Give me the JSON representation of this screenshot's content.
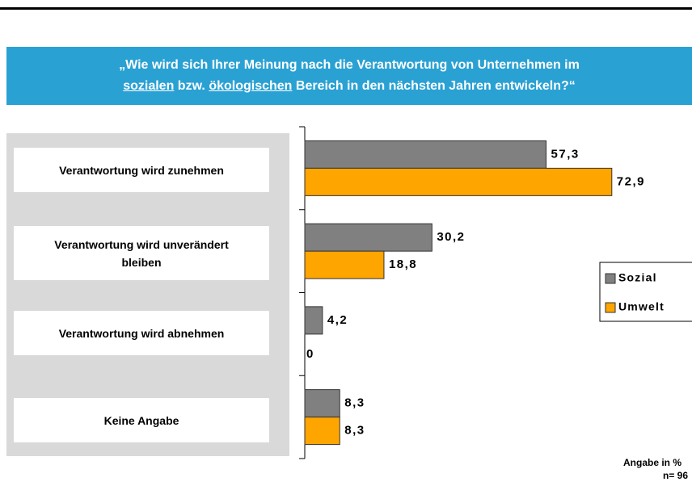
{
  "chart_data": {
    "type": "barh",
    "title": [
      "„Wie wird sich Ihrer Meinung nach die Verantwortung von Unternehmen im",
      "sozialen",
      " bzw. ",
      "ökologischen",
      " Bereich in den nächsten Jahren entwickeln?“"
    ],
    "categories": [
      "Verantwortung wird zunehmen",
      "Verantwortung wird unverändert bleiben",
      "Verantwortung wird abnehmen",
      "Keine Angabe"
    ],
    "series": [
      {
        "name": "Sozial",
        "color": "#808080",
        "values": [
          57.3,
          30.2,
          4.2,
          8.3
        ],
        "value_labels": [
          "57,3",
          "30,2",
          "4,2",
          "8,3"
        ]
      },
      {
        "name": "Umwelt",
        "color": "#ffa500",
        "values": [
          72.9,
          18.8,
          0,
          8.3
        ],
        "value_labels": [
          "72,9",
          "18,8",
          "0",
          "8,3"
        ]
      }
    ],
    "xlim": [
      0,
      100
    ],
    "legend": "right",
    "notes": [
      "Angabe in %",
      "n= 96"
    ]
  }
}
